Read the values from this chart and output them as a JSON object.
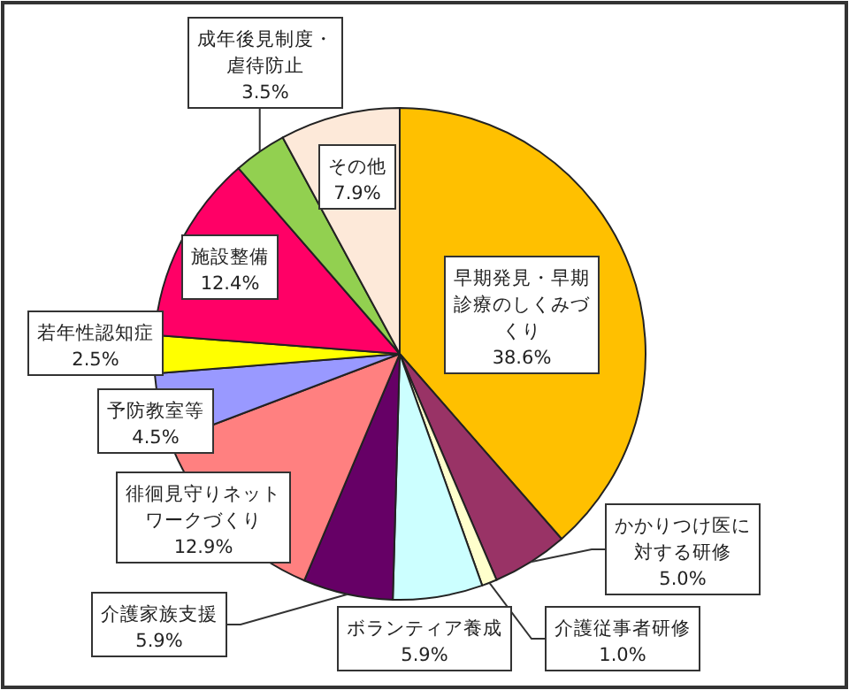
{
  "chart_data": {
    "type": "pie",
    "categories": [
      "早期発見・早期診療のしくみづくり",
      "かかりつけ医に対する研修",
      "介護従事者研修",
      "ボランティア養成",
      "介護家族支援",
      "徘徊見守りネットワークづくり",
      "予防教室等",
      "若年性認知症",
      "施設整備",
      "成年後見制度・虐待防止",
      "その他"
    ],
    "values": [
      38.6,
      5.0,
      1.0,
      5.9,
      5.9,
      12.9,
      4.5,
      2.5,
      12.4,
      3.5,
      7.9
    ],
    "colors": [
      "#ffc000",
      "#993366",
      "#ffffcc",
      "#ccffff",
      "#660066",
      "#ff8080",
      "#9999ff",
      "#ffff00",
      "#ff0066",
      "#92d050",
      "#fde9d9"
    ],
    "value_labels": [
      "38.6%",
      "5.0%",
      "1.0%",
      "5.9%",
      "5.9%",
      "12.9%",
      "4.5%",
      "2.5%",
      "12.4%",
      "3.5%",
      "7.9%"
    ]
  }
}
